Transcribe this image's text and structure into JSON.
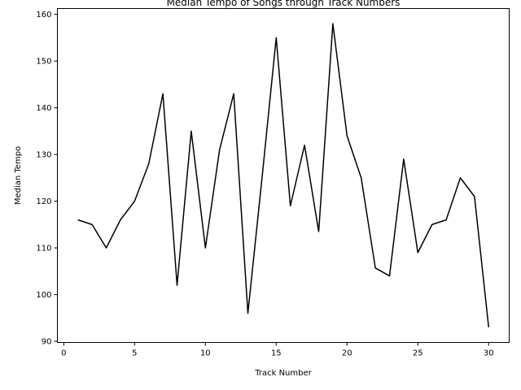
{
  "chart_data": {
    "type": "line",
    "title": "Median Tempo of Songs through Track Numbers",
    "xlabel": "Track Number",
    "ylabel": "Median Tempo",
    "xlim": [
      -0.45,
      31.45
    ],
    "ylim": [
      89.75,
      161.25
    ],
    "xticks": [
      0,
      5,
      10,
      15,
      20,
      25,
      30
    ],
    "yticks": [
      90,
      100,
      110,
      120,
      130,
      140,
      150,
      160
    ],
    "grid": false,
    "series": [
      {
        "color": "#000000",
        "x": [
          1,
          2,
          3,
          4,
          5,
          6,
          7,
          8,
          9,
          10,
          11,
          12,
          13,
          14,
          15,
          16,
          17,
          18,
          19,
          20,
          21,
          22,
          23,
          24,
          25,
          26,
          27,
          28,
          29,
          30
        ],
        "y": [
          116,
          115,
          110,
          116,
          120,
          128,
          143,
          102,
          135,
          110,
          131,
          143,
          96,
          125,
          155,
          119,
          132,
          113.5,
          158,
          134,
          125,
          105.7,
          104,
          129,
          109,
          115,
          116,
          125,
          121,
          93
        ]
      }
    ]
  }
}
